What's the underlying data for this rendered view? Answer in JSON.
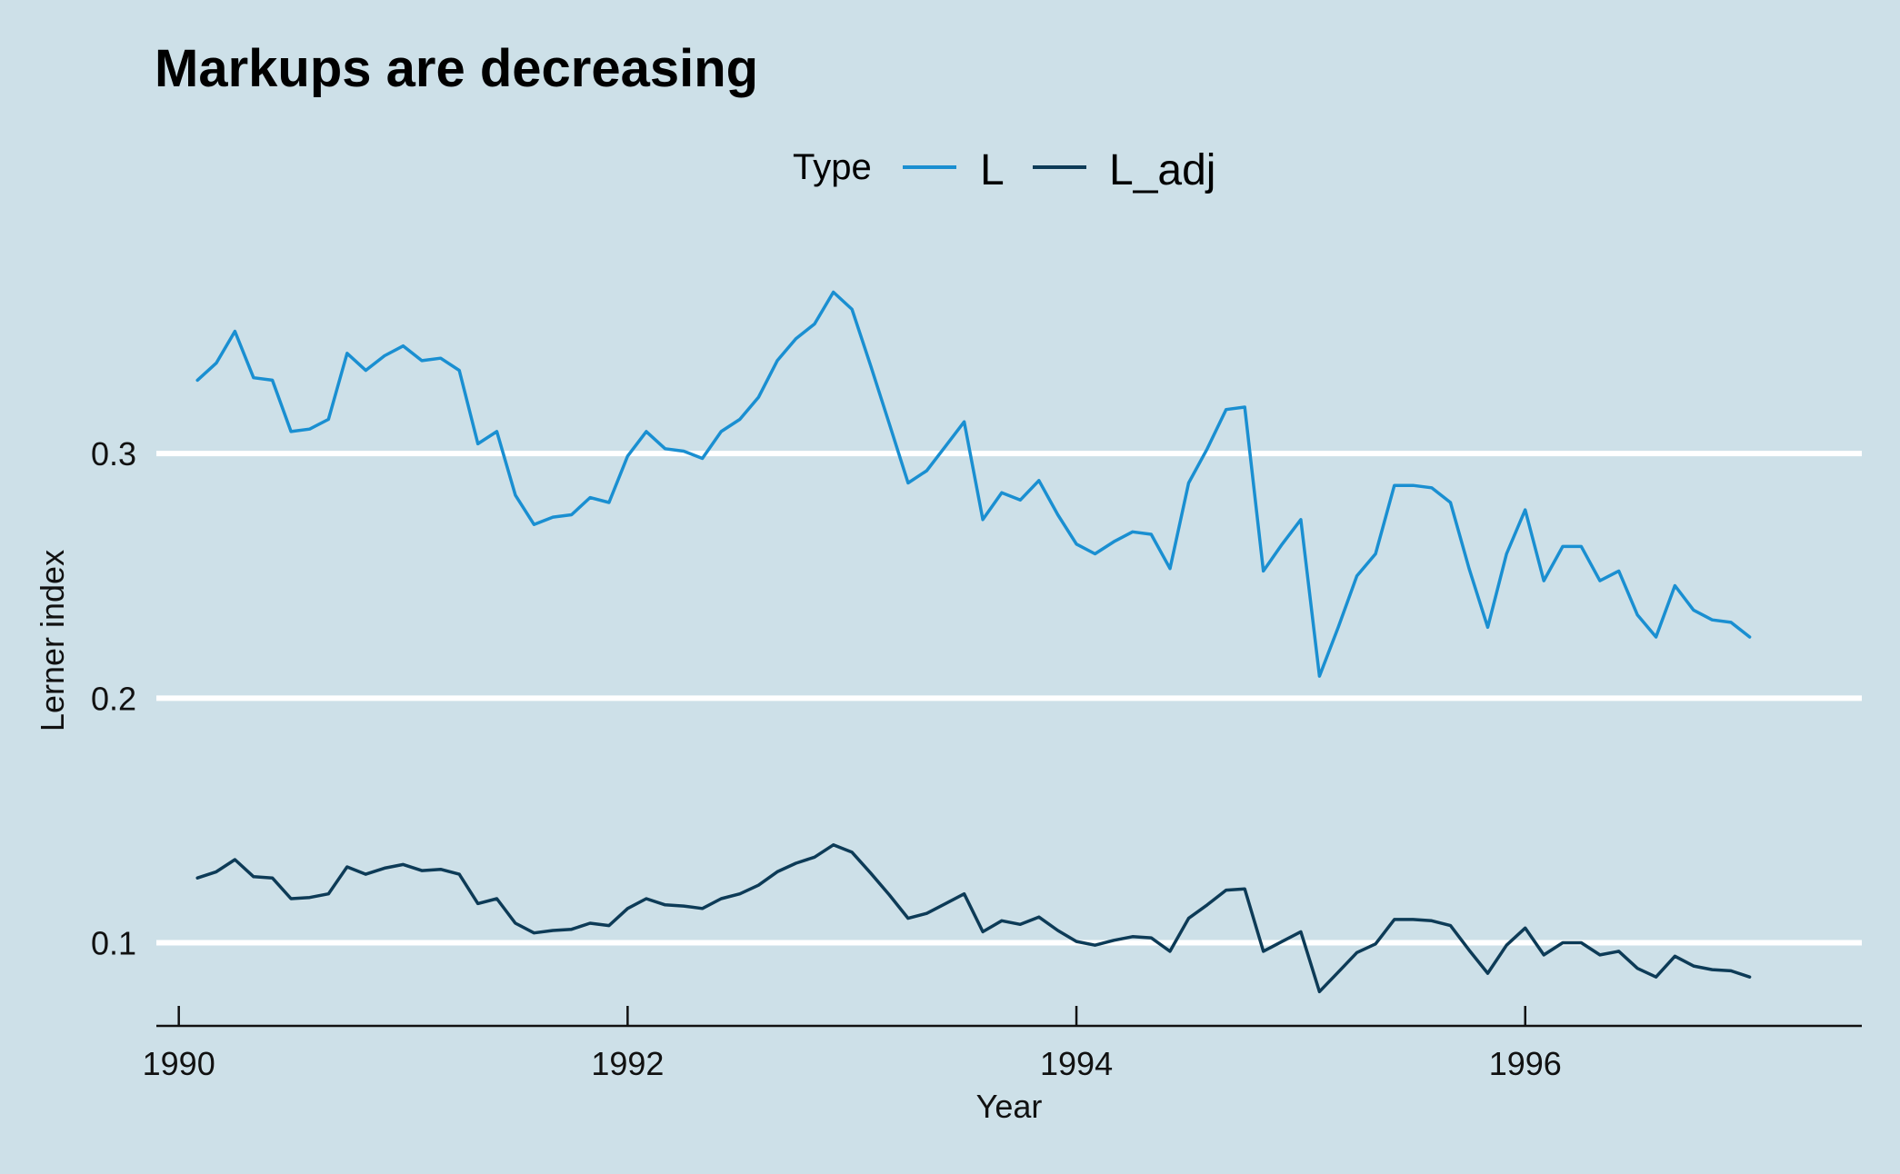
{
  "chart_data": {
    "type": "line",
    "title": "Markups are decreasing",
    "xlabel": "Year",
    "ylabel": "Lerner index",
    "xlim": [
      1989.9,
      1997.5
    ],
    "ylim": [
      0.066,
      0.4
    ],
    "xticks": [
      1990,
      1992,
      1994,
      1996
    ],
    "xtick_labels": [
      "1990",
      "1992",
      "1994",
      "1996"
    ],
    "yticks": [
      0.1,
      0.2,
      0.3
    ],
    "ytick_labels": [
      "0.1",
      "0.2",
      "0.3"
    ],
    "grid": "horizontal major",
    "legend": {
      "title": "Type",
      "placement": "top"
    },
    "x": [
      1990.083,
      1990.167,
      1990.25,
      1990.333,
      1990.417,
      1990.5,
      1990.583,
      1990.667,
      1990.75,
      1990.833,
      1990.917,
      1991.0,
      1991.083,
      1991.167,
      1991.25,
      1991.333,
      1991.417,
      1991.5,
      1991.583,
      1991.667,
      1991.75,
      1991.833,
      1991.917,
      1992.0,
      1992.083,
      1992.167,
      1992.25,
      1992.333,
      1992.417,
      1992.5,
      1992.583,
      1992.667,
      1992.75,
      1992.833,
      1992.917,
      1993.0,
      1993.083,
      1993.167,
      1993.25,
      1993.333,
      1993.417,
      1993.5,
      1993.583,
      1993.667,
      1993.75,
      1993.833,
      1993.917,
      1994.0,
      1994.083,
      1994.167,
      1994.25,
      1994.333,
      1994.417,
      1994.5,
      1994.583,
      1994.667,
      1994.75,
      1994.833,
      1994.917,
      1995.0,
      1995.083,
      1995.167,
      1995.25,
      1995.333,
      1995.417,
      1995.5,
      1995.583,
      1995.667,
      1995.75,
      1995.833,
      1995.917,
      1996.0,
      1996.083,
      1996.167,
      1996.25,
      1996.333,
      1996.417,
      1996.5,
      1996.583,
      1996.667,
      1996.75,
      1996.833,
      1996.917,
      1997.0
    ],
    "series": [
      {
        "name": "L",
        "color": "#1a8fd1",
        "values": [
          0.33,
          0.337,
          0.35,
          0.331,
          0.33,
          0.309,
          0.31,
          0.314,
          0.341,
          0.334,
          0.34,
          0.344,
          0.338,
          0.339,
          0.334,
          0.304,
          0.309,
          0.283,
          0.271,
          0.274,
          0.275,
          0.282,
          0.28,
          0.299,
          0.309,
          0.302,
          0.301,
          0.298,
          0.309,
          0.314,
          0.323,
          0.338,
          0.347,
          0.353,
          0.366,
          0.359,
          0.336,
          0.312,
          0.288,
          0.293,
          0.303,
          0.313,
          0.273,
          0.284,
          0.281,
          0.289,
          0.275,
          0.263,
          0.259,
          0.264,
          0.268,
          0.267,
          0.253,
          0.288,
          0.302,
          0.318,
          0.319,
          0.252,
          0.263,
          0.273,
          0.209,
          0.229,
          0.25,
          0.259,
          0.287,
          0.287,
          0.286,
          0.28,
          0.253,
          0.229,
          0.259,
          0.277,
          0.248,
          0.262,
          0.262,
          0.248,
          0.252,
          0.234,
          0.225,
          0.246,
          0.236,
          0.232,
          0.231,
          0.225
        ]
      },
      {
        "name": "L_adj",
        "color": "#0d3b57",
        "values": [
          0.1265,
          0.129,
          0.134,
          0.127,
          0.1265,
          0.118,
          0.1185,
          0.12,
          0.131,
          0.128,
          0.1305,
          0.132,
          0.1295,
          0.13,
          0.128,
          0.116,
          0.118,
          0.108,
          0.104,
          0.105,
          0.1055,
          0.108,
          0.107,
          0.114,
          0.118,
          0.1155,
          0.115,
          0.114,
          0.118,
          0.12,
          0.1235,
          0.129,
          0.1325,
          0.135,
          0.14,
          0.137,
          0.1285,
          0.1195,
          0.11,
          0.112,
          0.116,
          0.12,
          0.1045,
          0.109,
          0.1075,
          0.1105,
          0.105,
          0.1005,
          0.099,
          0.101,
          0.1025,
          0.102,
          0.0965,
          0.11,
          0.1155,
          0.1215,
          0.122,
          0.0965,
          0.1005,
          0.1045,
          0.08,
          0.088,
          0.096,
          0.0995,
          0.1095,
          0.1095,
          0.109,
          0.107,
          0.097,
          0.0875,
          0.099,
          0.106,
          0.095,
          0.1,
          0.1,
          0.095,
          0.0965,
          0.0895,
          0.086,
          0.0945,
          0.0905,
          0.089,
          0.0885,
          0.086
        ]
      }
    ]
  }
}
